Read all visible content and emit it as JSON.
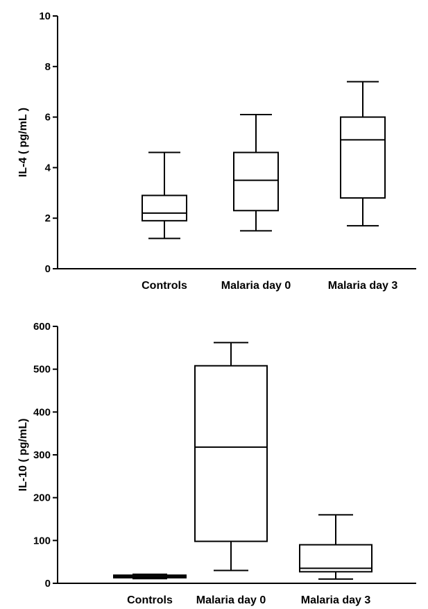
{
  "chart_data": [
    {
      "type": "box",
      "ylabel": "IL-4 ( pg/mL )",
      "ylim": [
        0,
        10
      ],
      "yticks": [
        "0",
        "2",
        "4",
        "6",
        "8",
        "10"
      ],
      "categories": [
        "Controls",
        "Malaria day 0",
        "Malaria day 3"
      ],
      "boxes": [
        {
          "name": "Controls",
          "min": 1.2,
          "q1": 1.9,
          "median": 2.2,
          "q3": 2.9,
          "max": 4.6
        },
        {
          "name": "Malaria day 0",
          "min": 1.5,
          "q1": 2.3,
          "median": 3.5,
          "q3": 4.6,
          "max": 6.1
        },
        {
          "name": "Malaria day 3",
          "min": 1.7,
          "q1": 2.8,
          "median": 5.1,
          "q3": 6.0,
          "max": 7.4
        }
      ]
    },
    {
      "type": "box",
      "ylabel": "IL-10 ( pg/mL)",
      "ylim": [
        0,
        600
      ],
      "yticks": [
        "0",
        "100",
        "200",
        "300",
        "400",
        "500",
        "600"
      ],
      "categories": [
        "Controls",
        "Malaria day 0",
        "Malaria day 3"
      ],
      "boxes": [
        {
          "name": "Controls",
          "min": 11,
          "q1": 13,
          "median": 16,
          "q3": 19,
          "max": 21
        },
        {
          "name": "Malaria day 0",
          "min": 30,
          "q1": 98,
          "median": 318,
          "q3": 508,
          "max": 562
        },
        {
          "name": "Malaria day 3",
          "min": 10,
          "q1": 27,
          "median": 35,
          "q3": 90,
          "max": 160
        }
      ]
    }
  ]
}
